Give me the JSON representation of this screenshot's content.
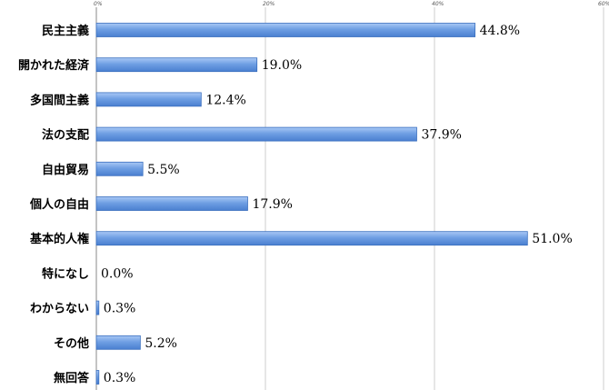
{
  "chart_data": {
    "type": "bar",
    "orientation": "horizontal",
    "categories": [
      "民主主義",
      "開かれた経済",
      "多国間主義",
      "法の支配",
      "自由貿易",
      "個人の自由",
      "基本的人権",
      "特になし",
      "わからない",
      "その他",
      "無回答"
    ],
    "values": [
      44.8,
      19.0,
      12.4,
      37.9,
      5.5,
      17.9,
      51.0,
      0.0,
      0.3,
      5.2,
      0.3
    ],
    "value_labels": [
      "44.8%",
      "19.0%",
      "12.4%",
      "37.9%",
      "5.5%",
      "17.9%",
      "51.0%",
      "0.0%",
      "0.3%",
      "5.2%",
      "0.3%"
    ],
    "x_ticks": [
      "0%",
      "20%",
      "40%",
      "60%"
    ],
    "xlim": [
      0,
      60
    ],
    "grid": true,
    "title": "",
    "xlabel": "",
    "ylabel": "",
    "colors": {
      "bar": "#6f9fe3",
      "bar_edge": "#3a6fbf",
      "grid": "#c0c0c0",
      "axis": "#888888"
    }
  }
}
